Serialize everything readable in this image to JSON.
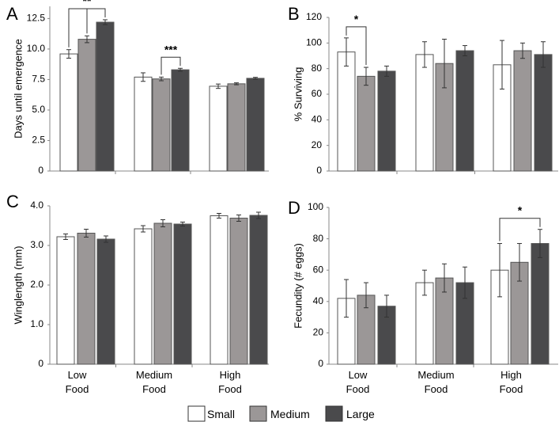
{
  "colors": {
    "small": "#ffffff",
    "medium": "#9b9797",
    "large": "#4a4a4c",
    "axis": "#888888",
    "stroke": "#555555"
  },
  "legend": [
    {
      "key": "small",
      "label": "Small"
    },
    {
      "key": "medium",
      "label": "Medium"
    },
    {
      "key": "large",
      "label": "Large"
    }
  ],
  "chart_data": [
    {
      "type": "bar",
      "panel": "A",
      "ylabel": "Days until emergence",
      "ylim": [
        0,
        13.5
      ],
      "yticks": [
        0,
        2.5,
        5.0,
        7.5,
        10.0,
        12.5
      ],
      "ytick_labels": [
        "0",
        "2.5",
        "5.0",
        "7.5",
        "10.0",
        "12.5"
      ],
      "categories": [
        "Low Food",
        "Medium Food",
        "High Food"
      ],
      "show_category_labels": false,
      "series": [
        {
          "name": "Small",
          "values": [
            9.6,
            7.7,
            6.95
          ],
          "errors": [
            0.35,
            0.35,
            0.18
          ]
        },
        {
          "name": "Medium",
          "values": [
            10.8,
            7.55,
            7.15
          ],
          "errors": [
            0.28,
            0.15,
            0.08
          ]
        },
        {
          "name": "Large",
          "values": [
            12.2,
            8.3,
            7.6
          ],
          "errors": [
            0.2,
            0.12,
            0.08
          ]
        }
      ],
      "significance": [
        {
          "label": "**",
          "category": 0,
          "from_series": 0,
          "to_series": 2
        },
        {
          "label": "***",
          "category": 1,
          "from_series": 1,
          "to_series": 2
        }
      ]
    },
    {
      "type": "bar",
      "panel": "B",
      "ylabel": "% Surviving",
      "ylim": [
        0,
        120
      ],
      "yticks": [
        0,
        20,
        40,
        60,
        80,
        100,
        120
      ],
      "ytick_labels": [
        "0",
        "20",
        "40",
        "60",
        "80",
        "100",
        "120"
      ],
      "categories": [
        "Low Food",
        "Medium Food",
        "High Food"
      ],
      "show_category_labels": false,
      "series": [
        {
          "name": "Small",
          "values": [
            93,
            91,
            83
          ],
          "errors": [
            11,
            10,
            19
          ]
        },
        {
          "name": "Medium",
          "values": [
            74,
            84,
            94
          ],
          "errors": [
            7,
            19,
            6
          ]
        },
        {
          "name": "Large",
          "values": [
            78,
            94,
            91
          ],
          "errors": [
            4,
            4,
            10
          ]
        }
      ],
      "significance": [
        {
          "label": "*",
          "category": 0,
          "from_series": 0,
          "to_series": 1
        }
      ]
    },
    {
      "type": "bar",
      "panel": "C",
      "ylabel": "Winglength (mm)",
      "ylim": [
        0,
        4.0
      ],
      "yticks": [
        0,
        1.0,
        2.0,
        3.0,
        4.0
      ],
      "ytick_labels": [
        "0",
        "1.0",
        "2.0",
        "3.0",
        "4.0"
      ],
      "categories": [
        "Low Food",
        "Medium Food",
        "High Food"
      ],
      "show_category_labels": true,
      "series": [
        {
          "name": "Small",
          "values": [
            3.22,
            3.42,
            3.75
          ],
          "errors": [
            0.07,
            0.08,
            0.06
          ]
        },
        {
          "name": "Medium",
          "values": [
            3.31,
            3.56,
            3.69
          ],
          "errors": [
            0.1,
            0.09,
            0.08
          ]
        },
        {
          "name": "Large",
          "values": [
            3.16,
            3.54,
            3.76
          ],
          "errors": [
            0.08,
            0.05,
            0.08
          ]
        }
      ],
      "significance": []
    },
    {
      "type": "bar",
      "panel": "D",
      "ylabel": "Fecundity (# eggs)",
      "ylim": [
        0,
        100
      ],
      "yticks": [
        0,
        20,
        40,
        60,
        80,
        100
      ],
      "ytick_labels": [
        "0",
        "20",
        "40",
        "60",
        "80",
        "100"
      ],
      "categories": [
        "Low Food",
        "Medium Food",
        "High Food"
      ],
      "show_category_labels": true,
      "series": [
        {
          "name": "Small",
          "values": [
            42,
            52,
            60
          ],
          "errors": [
            12,
            8,
            17
          ]
        },
        {
          "name": "Medium",
          "values": [
            44,
            55,
            65
          ],
          "errors": [
            8,
            9,
            12
          ]
        },
        {
          "name": "Large",
          "values": [
            37,
            52,
            77
          ],
          "errors": [
            7,
            10,
            9
          ]
        }
      ],
      "significance": [
        {
          "label": "*",
          "category": 2,
          "from_series": 0,
          "to_series": 2
        }
      ]
    }
  ]
}
